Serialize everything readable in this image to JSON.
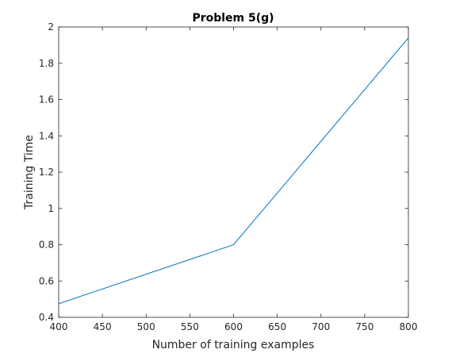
{
  "chart_data": {
    "type": "line",
    "title": "Problem 5(g)",
    "xlabel": "Number of training examples",
    "ylabel": "Training Time",
    "xlim": [
      400,
      800
    ],
    "ylim": [
      0.4,
      2
    ],
    "xticks": [
      400,
      450,
      500,
      550,
      600,
      650,
      700,
      750,
      800
    ],
    "yticks": [
      0.4,
      0.6,
      0.8,
      1,
      1.2,
      1.4,
      1.6,
      1.8,
      2
    ],
    "grid": false,
    "series": [
      {
        "x": [
          400,
          600,
          800
        ],
        "y": [
          0.475,
          0.8,
          1.94
        ],
        "color": "#0072BD"
      }
    ]
  }
}
